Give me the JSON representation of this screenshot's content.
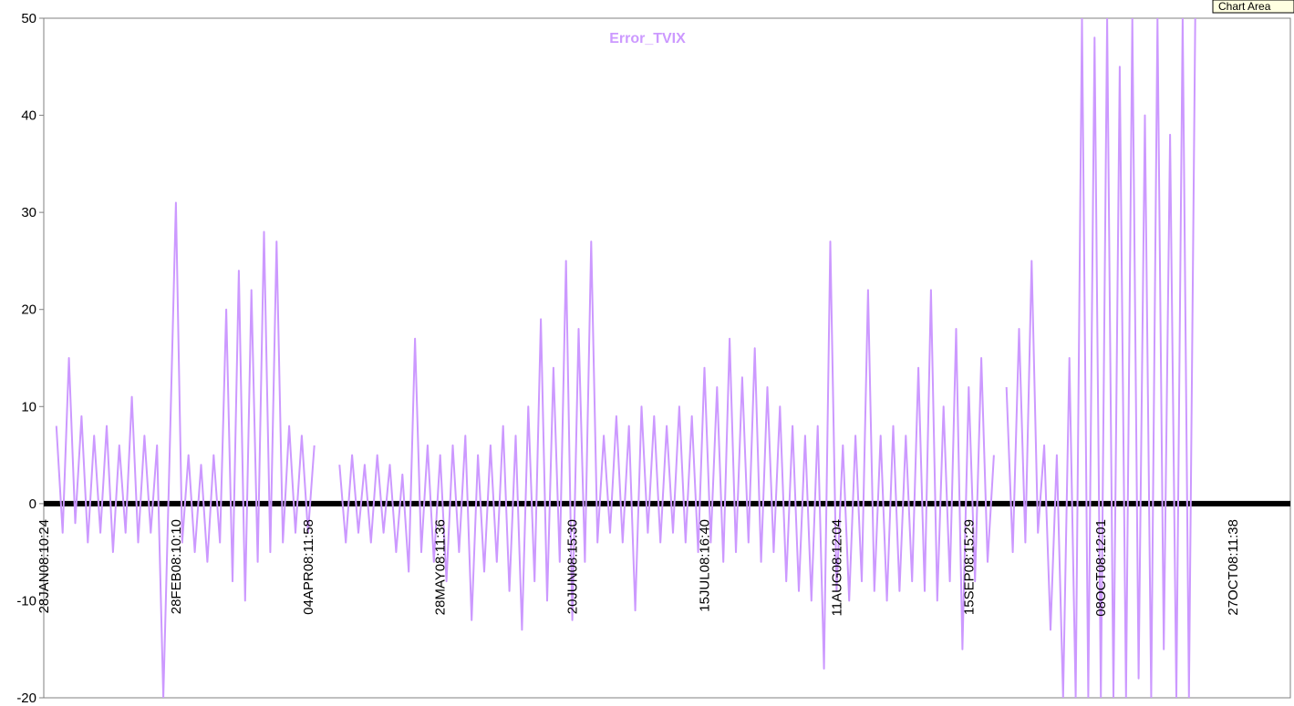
{
  "chart_data": {
    "type": "line",
    "title": "Error_TVIX",
    "tooltip": "Chart Area",
    "ylim": [
      -20,
      50
    ],
    "yticks": [
      -20,
      -10,
      0,
      10,
      20,
      30,
      40,
      50
    ],
    "categories": [
      "28JAN08:10:24",
      null,
      null,
      null,
      null,
      null,
      null,
      null,
      null,
      null,
      null,
      null,
      null,
      null,
      null,
      null,
      null,
      null,
      null,
      null,
      null,
      "28FEB08:10:10",
      null,
      null,
      null,
      null,
      null,
      null,
      null,
      null,
      null,
      null,
      null,
      null,
      null,
      null,
      null,
      null,
      null,
      null,
      null,
      null,
      "04APR08:11:58",
      null,
      null,
      null,
      null,
      null,
      null,
      null,
      null,
      null,
      null,
      null,
      null,
      null,
      null,
      null,
      null,
      null,
      null,
      null,
      null,
      "28MAY08:11:36",
      null,
      null,
      null,
      null,
      null,
      null,
      null,
      null,
      null,
      null,
      null,
      null,
      null,
      null,
      null,
      null,
      null,
      null,
      null,
      null,
      "20JUN08:15:30",
      null,
      null,
      null,
      null,
      null,
      null,
      null,
      null,
      null,
      null,
      null,
      null,
      null,
      null,
      null,
      null,
      null,
      null,
      null,
      null,
      "15JUL08:16:40",
      null,
      null,
      null,
      null,
      null,
      null,
      null,
      null,
      null,
      null,
      null,
      null,
      null,
      null,
      null,
      null,
      null,
      null,
      null,
      null,
      "11AUG08:12:04",
      null,
      null,
      null,
      null,
      null,
      null,
      null,
      null,
      null,
      null,
      null,
      null,
      null,
      null,
      null,
      null,
      null,
      null,
      null,
      null,
      "15SEP08:15:29",
      null,
      null,
      null,
      null,
      null,
      null,
      null,
      null,
      null,
      null,
      null,
      null,
      null,
      null,
      null,
      null,
      null,
      null,
      null,
      null,
      "08OCT08:12:01",
      null,
      null,
      null,
      null,
      null,
      null,
      null,
      null,
      null,
      null,
      null,
      null,
      null,
      null,
      null,
      null,
      null,
      null,
      null,
      null,
      "27OCT08:11:38",
      null,
      null,
      null,
      null,
      null,
      null,
      null,
      null,
      null,
      null
    ],
    "series": [
      {
        "color": "#cc99ff",
        "values": [
          null,
          null,
          8,
          -3,
          15,
          -2,
          9,
          -4,
          7,
          -3,
          8,
          -5,
          6,
          -3,
          11,
          -4,
          7,
          -3,
          6,
          -20,
          5,
          31,
          -4,
          5,
          -5,
          4,
          -6,
          5,
          -4,
          20,
          -8,
          24,
          -10,
          22,
          -6,
          28,
          -5,
          27,
          -4,
          8,
          -3,
          7,
          -3,
          6,
          null,
          null,
          null,
          4,
          -4,
          5,
          -3,
          4,
          -4,
          5,
          -3,
          4,
          -5,
          3,
          -7,
          17,
          -5,
          6,
          -6,
          5,
          -8,
          6,
          -5,
          7,
          -12,
          5,
          -7,
          6,
          -6,
          8,
          -9,
          7,
          -13,
          10,
          -8,
          19,
          -10,
          14,
          -6,
          25,
          -12,
          18,
          -6,
          27,
          -4,
          7,
          -3,
          9,
          -4,
          8,
          -11,
          10,
          -3,
          9,
          -4,
          8,
          -3,
          10,
          -4,
          9,
          -5,
          14,
          -4,
          12,
          -6,
          17,
          -5,
          13,
          -4,
          16,
          -6,
          12,
          -5,
          10,
          -8,
          8,
          -9,
          7,
          -10,
          8,
          -17,
          27,
          -9,
          6,
          -10,
          7,
          -8,
          22,
          -9,
          7,
          -10,
          8,
          -9,
          7,
          -8,
          14,
          -9,
          22,
          -10,
          10,
          -8,
          18,
          -15,
          12,
          -8,
          15,
          -6,
          5,
          null,
          12,
          -5,
          18,
          -4,
          25,
          -3,
          6,
          -13,
          5,
          -20,
          15,
          -20,
          50,
          -20,
          48,
          -20,
          50,
          -20,
          45,
          -20,
          50,
          -18,
          40,
          -20,
          50,
          -15,
          38,
          -20,
          50,
          -20,
          50,
          null,
          null,
          null,
          null,
          null,
          null,
          null,
          null,
          null,
          null,
          null,
          null,
          null,
          null,
          null,
          null
        ]
      },
      {
        "color": "#000000",
        "values": [
          0,
          0,
          0,
          0,
          0,
          0,
          0,
          0,
          0,
          0,
          0,
          0,
          0,
          0,
          0,
          0,
          0,
          0,
          0,
          0,
          0,
          0,
          0,
          0,
          0,
          0,
          0,
          0,
          0,
          0,
          0,
          0,
          0,
          0,
          0,
          0,
          0,
          0,
          0,
          0,
          0,
          0,
          0,
          0,
          0,
          0,
          0,
          0,
          0,
          0,
          0,
          0,
          0,
          0,
          0,
          0,
          0,
          0,
          0,
          0,
          0,
          0,
          0,
          0,
          0,
          0,
          0,
          0,
          0,
          0,
          0,
          0,
          0,
          0,
          0,
          0,
          0,
          0,
          0,
          0,
          0,
          0,
          0,
          0,
          0,
          0,
          0,
          0,
          0,
          0,
          0,
          0,
          0,
          0,
          0,
          0,
          0,
          0,
          0,
          0,
          0,
          0,
          0,
          0,
          0,
          0,
          0,
          0,
          0,
          0,
          0,
          0,
          0,
          0,
          0,
          0,
          0,
          0,
          0,
          0,
          0,
          0,
          0,
          0,
          0,
          0,
          0,
          0,
          0,
          0,
          0,
          0,
          0,
          0,
          0,
          0,
          0,
          0,
          0,
          0,
          0,
          0,
          0,
          0,
          0,
          0,
          0,
          0,
          0,
          0,
          0,
          0,
          0,
          0,
          0,
          0,
          0,
          0,
          0,
          0,
          0,
          0,
          0,
          0,
          0,
          0,
          0,
          0,
          0,
          0,
          0,
          0,
          0,
          0,
          0,
          0,
          0,
          0,
          0,
          0,
          0,
          0,
          0,
          0,
          0,
          0,
          0,
          0,
          0,
          0,
          0,
          0,
          0,
          0,
          0,
          0,
          0,
          0,
          0,
          0
        ]
      }
    ]
  }
}
